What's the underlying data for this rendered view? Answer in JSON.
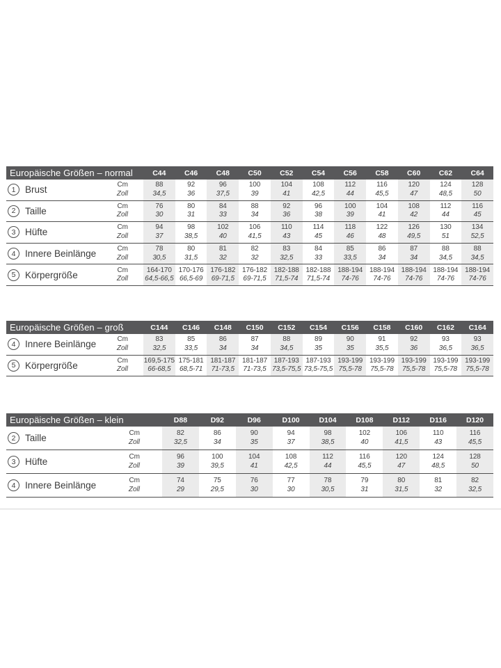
{
  "colors": {
    "header_bar": "#58585a",
    "column_stripe": "#ebebeb",
    "row_line": "#4d4d4d",
    "text": "#404040",
    "page_divider": "#d5d5d5"
  },
  "units": {
    "cm": "Cm",
    "zoll": "Zoll"
  },
  "tables": [
    {
      "id": "normal",
      "title": "Europäische Größen – normal",
      "sizes": [
        "C44",
        "C46",
        "C48",
        "C50",
        "C52",
        "C54",
        "C56",
        "C58",
        "C60",
        "C62",
        "C64"
      ],
      "rows": [
        {
          "num": "1",
          "label": "Brust",
          "cm": [
            "88",
            "92",
            "96",
            "100",
            "104",
            "108",
            "112",
            "116",
            "120",
            "124",
            "128"
          ],
          "zoll": [
            "34,5",
            "36",
            "37,5",
            "39",
            "41",
            "42,5",
            "44",
            "45,5",
            "47",
            "48,5",
            "50"
          ]
        },
        {
          "num": "2",
          "label": "Taille",
          "cm": [
            "76",
            "80",
            "84",
            "88",
            "92",
            "96",
            "100",
            "104",
            "108",
            "112",
            "116"
          ],
          "zoll": [
            "30",
            "31",
            "33",
            "34",
            "36",
            "38",
            "39",
            "41",
            "42",
            "44",
            "45"
          ]
        },
        {
          "num": "3",
          "label": "Hüfte",
          "cm": [
            "94",
            "98",
            "102",
            "106",
            "110",
            "114",
            "118",
            "122",
            "126",
            "130",
            "134"
          ],
          "zoll": [
            "37",
            "38,5",
            "40",
            "41,5",
            "43",
            "45",
            "46",
            "48",
            "49,5",
            "51",
            "52,5"
          ]
        },
        {
          "num": "4",
          "label": "Innere Beinlänge",
          "cm": [
            "78",
            "80",
            "81",
            "82",
            "83",
            "84",
            "85",
            "86",
            "87",
            "88",
            "88"
          ],
          "zoll": [
            "30,5",
            "31,5",
            "32",
            "32",
            "32,5",
            "33",
            "33,5",
            "34",
            "34",
            "34,5",
            "34,5"
          ]
        },
        {
          "num": "5",
          "label": "Körpergröße",
          "cm": [
            "164-170",
            "170-176",
            "176-182",
            "176-182",
            "182-188",
            "182-188",
            "188-194",
            "188-194",
            "188-194",
            "188-194",
            "188-194"
          ],
          "zoll": [
            "64,5-66,5",
            "66,5-69",
            "69-71,5",
            "69-71,5",
            "71,5-74",
            "71,5-74",
            "74-76",
            "74-76",
            "74-76",
            "74-76",
            "74-76"
          ]
        }
      ]
    },
    {
      "id": "gross",
      "title": "Europäische Größen – groß",
      "sizes": [
        "C144",
        "C146",
        "C148",
        "C150",
        "C152",
        "C154",
        "C156",
        "C158",
        "C160",
        "C162",
        "C164"
      ],
      "rows": [
        {
          "num": "4",
          "label": "Innere Beinlänge",
          "cm": [
            "83",
            "85",
            "86",
            "87",
            "88",
            "89",
            "90",
            "91",
            "92",
            "93",
            "93"
          ],
          "zoll": [
            "32,5",
            "33,5",
            "34",
            "34",
            "34,5",
            "35",
            "35",
            "35,5",
            "36",
            "36,5",
            "36,5"
          ]
        },
        {
          "num": "5",
          "label": "Körpergröße",
          "cm": [
            "169,5-175",
            "175-181",
            "181-187",
            "181-187",
            "187-193",
            "187-193",
            "193-199",
            "193-199",
            "193-199",
            "193-199",
            "193-199"
          ],
          "zoll": [
            "66-68,5",
            "68,5-71",
            "71-73,5",
            "71-73,5",
            "73,5-75,5",
            "73,5-75,5",
            "75,5-78",
            "75,5-78",
            "75,5-78",
            "75,5-78",
            "75,5-78"
          ]
        }
      ]
    },
    {
      "id": "klein",
      "title": "Europäische Größen – klein",
      "sizes": [
        "D88",
        "D92",
        "D96",
        "D100",
        "D104",
        "D108",
        "D112",
        "D116",
        "D120"
      ],
      "rows": [
        {
          "num": "2",
          "label": "Taille",
          "cm": [
            "82",
            "86",
            "90",
            "94",
            "98",
            "102",
            "106",
            "110",
            "116"
          ],
          "zoll": [
            "32,5",
            "34",
            "35",
            "37",
            "38,5",
            "40",
            "41,5",
            "43",
            "45,5"
          ]
        },
        {
          "num": "3",
          "label": "Hüfte",
          "cm": [
            "96",
            "100",
            "104",
            "108",
            "112",
            "116",
            "120",
            "124",
            "128"
          ],
          "zoll": [
            "39",
            "39,5",
            "41",
            "42,5",
            "44",
            "45,5",
            "47",
            "48,5",
            "50"
          ]
        },
        {
          "num": "4",
          "label": "Innere Beinlänge",
          "cm": [
            "74",
            "75",
            "76",
            "77",
            "78",
            "79",
            "80",
            "81",
            "82"
          ],
          "zoll": [
            "29",
            "29,5",
            "30",
            "30",
            "30,5",
            "31",
            "31,5",
            "32",
            "32,5"
          ]
        }
      ]
    }
  ]
}
